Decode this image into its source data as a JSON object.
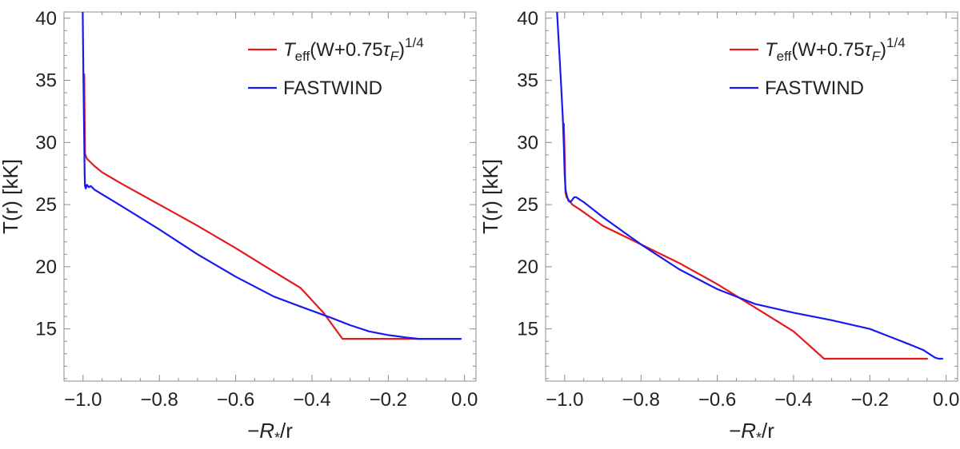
{
  "chart_data": [
    {
      "type": "line",
      "xlabel": "−R*/r",
      "ylabel": "T(r) [kK]",
      "xlim": [
        -1.05,
        0.03
      ],
      "ylim": [
        10.8,
        40.5
      ],
      "xticks": [
        -1.0,
        -0.8,
        -0.6,
        -0.4,
        -0.2,
        0.0
      ],
      "xtick_labels": [
        "−1.0",
        "−0.8",
        "−0.6",
        "−0.4",
        "−0.2",
        "0.0"
      ],
      "yticks": [
        15,
        20,
        25,
        30,
        35,
        40
      ],
      "ytick_labels": [
        "15",
        "20",
        "25",
        "30",
        "35",
        "40"
      ],
      "legend_position": "top-right",
      "series": [
        {
          "name": "Teff(W+0.75τF)^1/4",
          "color": "#e41a1c",
          "x": [
            -0.997,
            -0.995,
            -0.99,
            -0.97,
            -0.95,
            -0.9,
            -0.8,
            -0.7,
            -0.6,
            -0.5,
            -0.43,
            -0.37,
            -0.32,
            -0.25,
            -0.2,
            -0.12,
            -0.01
          ],
          "y": [
            35.5,
            29.1,
            28.7,
            28.1,
            27.6,
            26.7,
            25.0,
            23.3,
            21.5,
            19.6,
            18.3,
            16.3,
            14.2,
            14.2,
            14.2,
            14.2,
            14.2
          ]
        },
        {
          "name": "FASTWIND",
          "color": "#1a1aee",
          "x": [
            -1.001,
            -1.0,
            -0.999,
            -0.997,
            -0.996,
            -0.995,
            -0.993,
            -0.99,
            -0.985,
            -0.98,
            -0.97,
            -0.9,
            -0.8,
            -0.7,
            -0.6,
            -0.5,
            -0.43,
            -0.35,
            -0.3,
            -0.25,
            -0.2,
            -0.15,
            -0.12,
            -0.1,
            -0.05,
            -0.01
          ],
          "y": [
            40.5,
            38.0,
            35.0,
            30.0,
            27.5,
            26.5,
            26.3,
            26.6,
            26.4,
            26.5,
            26.2,
            24.9,
            23.0,
            21.0,
            19.2,
            17.6,
            16.8,
            15.9,
            15.3,
            14.8,
            14.5,
            14.3,
            14.2,
            14.2,
            14.2,
            14.2
          ]
        }
      ]
    },
    {
      "type": "line",
      "xlabel": "−R*/r",
      "ylabel": "T(r) [kK]",
      "xlim": [
        -1.05,
        0.03
      ],
      "ylim": [
        10.8,
        40.5
      ],
      "xticks": [
        -1.0,
        -0.8,
        -0.6,
        -0.4,
        -0.2,
        0.0
      ],
      "xtick_labels": [
        "−1.0",
        "−0.8",
        "−0.6",
        "−0.4",
        "−0.2",
        "0.0"
      ],
      "yticks": [
        15,
        20,
        25,
        30,
        35,
        40
      ],
      "ytick_labels": [
        "15",
        "20",
        "25",
        "30",
        "35",
        "40"
      ],
      "legend_position": "top-right",
      "series": [
        {
          "name": "Teff(W+0.75τF)^1/4",
          "color": "#e41a1c",
          "x": [
            -1.002,
            -1.0,
            -0.998,
            -0.995,
            -0.99,
            -0.98,
            -0.96,
            -0.9,
            -0.8,
            -0.7,
            -0.6,
            -0.5,
            -0.4,
            -0.32,
            -0.2,
            -0.1,
            -0.05
          ],
          "y": [
            31.5,
            29.0,
            26.0,
            25.6,
            25.4,
            25.0,
            24.6,
            23.3,
            21.8,
            20.3,
            18.6,
            16.7,
            14.8,
            12.6,
            12.6,
            12.6,
            12.6
          ]
        },
        {
          "name": "FASTWIND",
          "color": "#1a1aee",
          "x": [
            -1.02,
            -1.01,
            -1.005,
            -1.002,
            -1.0,
            -0.998,
            -0.995,
            -0.99,
            -0.985,
            -0.98,
            -0.975,
            -0.97,
            -0.965,
            -0.96,
            -0.95,
            -0.9,
            -0.8,
            -0.7,
            -0.6,
            -0.5,
            -0.4,
            -0.3,
            -0.2,
            -0.15,
            -0.1,
            -0.06,
            -0.04,
            -0.03,
            -0.02,
            -0.01
          ],
          "y": [
            40.5,
            35.0,
            32.0,
            29.5,
            27.5,
            26.3,
            25.8,
            25.3,
            25.2,
            25.4,
            25.6,
            25.6,
            25.5,
            25.4,
            25.2,
            24.0,
            21.8,
            19.8,
            18.2,
            17.0,
            16.3,
            15.7,
            15.0,
            14.4,
            13.8,
            13.3,
            12.9,
            12.7,
            12.6,
            12.6
          ]
        }
      ]
    }
  ]
}
